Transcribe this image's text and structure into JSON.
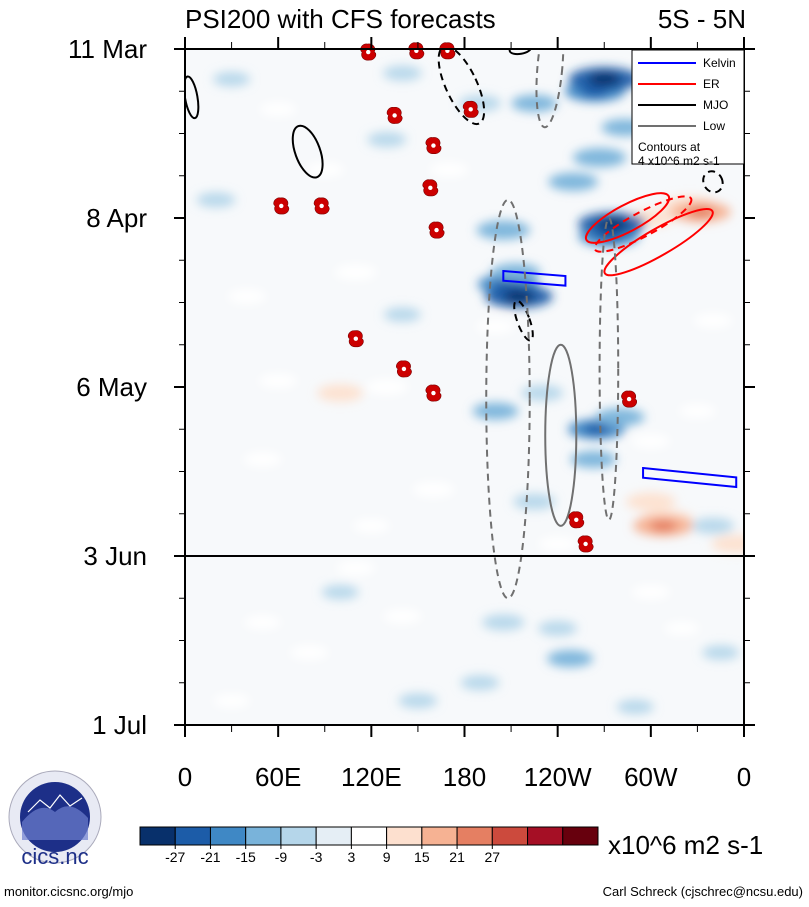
{
  "chart_data": {
    "type": "heatmap",
    "title": "PSI200 with CFS forecasts",
    "region": "5S - 5N",
    "x_ticks": [
      "0",
      "60E",
      "120E",
      "180",
      "120W",
      "60W",
      "0"
    ],
    "x_values": [
      0,
      60,
      120,
      180,
      240,
      300,
      360
    ],
    "xlim": [
      0,
      360
    ],
    "y_ticks": [
      "11 Mar",
      "8 Apr",
      "6 May",
      "3 Jun",
      "1 Jul"
    ],
    "y_values": [
      0,
      28,
      56,
      84,
      112
    ],
    "ylim": [
      0,
      112
    ],
    "forecast_start_label": "3 Jun",
    "forecast_start_day": 84,
    "colorbar": {
      "levels": [
        "-27",
        "-21",
        "-15",
        "-9",
        "-3",
        "3",
        "9",
        "15",
        "21",
        "27"
      ],
      "colors": [
        "#08306b",
        "#1c5ca8",
        "#3f88c5",
        "#79b3da",
        "#b5d6ea",
        "#e5eef5",
        "#ffffff",
        "#fde0cf",
        "#f6b293",
        "#e57f62",
        "#cc4a3d",
        "#a50f25",
        "#67000d"
      ],
      "units": "x10^6 m2 s-1"
    },
    "legend": {
      "items": [
        {
          "label": "Kelvin",
          "color": "#0000ff"
        },
        {
          "label": "ER",
          "color": "#ff0000"
        },
        {
          "label": "MJO",
          "color": "#000000"
        },
        {
          "label": "Low",
          "color": "#707070"
        }
      ],
      "note_line1": "Contours at",
      "note_line2": "4 x10^6 m2 s-1",
      "placement": "top-right"
    },
    "anomaly_patches": [
      {
        "lon": 264,
        "day": 7,
        "v": -18
      },
      {
        "lon": 270,
        "day": 5,
        "v": -24
      },
      {
        "lon": 225,
        "day": 9,
        "v": -10
      },
      {
        "lon": 190,
        "day": 9,
        "v": -8
      },
      {
        "lon": 140,
        "day": 4,
        "v": -6
      },
      {
        "lon": 30,
        "day": 5,
        "v": -5
      },
      {
        "lon": 60,
        "day": 10,
        "v": 5
      },
      {
        "lon": 250,
        "day": 22,
        "v": -12
      },
      {
        "lon": 267,
        "day": 18,
        "v": -14
      },
      {
        "lon": 283,
        "day": 13,
        "v": -10
      },
      {
        "lon": 325,
        "day": 26,
        "v": 14
      },
      {
        "lon": 332,
        "day": 27,
        "v": 18
      },
      {
        "lon": 300,
        "day": 28,
        "v": 10
      },
      {
        "lon": 273,
        "day": 31,
        "v": -18
      },
      {
        "lon": 275,
        "day": 29,
        "v": -22
      },
      {
        "lon": 205,
        "day": 30,
        "v": -14
      },
      {
        "lon": 208,
        "day": 39,
        "v": -18
      },
      {
        "lon": 215,
        "day": 41,
        "v": -22
      },
      {
        "lon": 213,
        "day": 37,
        "v": -12
      },
      {
        "lon": 110,
        "day": 37,
        "v": 8
      },
      {
        "lon": 40,
        "day": 41,
        "v": 6
      },
      {
        "lon": 140,
        "day": 44,
        "v": -5
      },
      {
        "lon": 100,
        "day": 57,
        "v": 10
      },
      {
        "lon": 130,
        "day": 56,
        "v": 8
      },
      {
        "lon": 60,
        "day": 55,
        "v": 6
      },
      {
        "lon": 200,
        "day": 60,
        "v": -10
      },
      {
        "lon": 230,
        "day": 57,
        "v": -8
      },
      {
        "lon": 265,
        "day": 63,
        "v": -16
      },
      {
        "lon": 280,
        "day": 61,
        "v": -12
      },
      {
        "lon": 263,
        "day": 68,
        "v": -10
      },
      {
        "lon": 300,
        "day": 65,
        "v": 6
      },
      {
        "lon": 330,
        "day": 60,
        "v": 5
      },
      {
        "lon": 300,
        "day": 75,
        "v": 12
      },
      {
        "lon": 310,
        "day": 78,
        "v": 14
      },
      {
        "lon": 308,
        "day": 79,
        "v": 18
      },
      {
        "lon": 355,
        "day": 82,
        "v": 12
      },
      {
        "lon": 340,
        "day": 79,
        "v": -8
      },
      {
        "lon": 160,
        "day": 73,
        "v": 8
      },
      {
        "lon": 50,
        "day": 68,
        "v": 6
      },
      {
        "lon": 225,
        "day": 75,
        "v": -8
      },
      {
        "lon": 120,
        "day": 79,
        "v": 5
      },
      {
        "lon": 240,
        "day": 82,
        "v": 6
      },
      {
        "lon": 200,
        "day": 46,
        "v": 6
      },
      {
        "lon": 20,
        "day": 25,
        "v": -6
      },
      {
        "lon": 90,
        "day": 20,
        "v": 6
      },
      {
        "lon": 130,
        "day": 15,
        "v": -6
      },
      {
        "lon": 170,
        "day": 20,
        "v": 6
      },
      {
        "lon": 340,
        "day": 45,
        "v": 6
      },
      {
        "lon": 100,
        "day": 90,
        "v": -5
      },
      {
        "lon": 140,
        "day": 94,
        "v": 6
      },
      {
        "lon": 205,
        "day": 95,
        "v": -8
      },
      {
        "lon": 240,
        "day": 96,
        "v": -6
      },
      {
        "lon": 248,
        "day": 101,
        "v": -10
      },
      {
        "lon": 300,
        "day": 90,
        "v": 6
      },
      {
        "lon": 50,
        "day": 95,
        "v": 5
      },
      {
        "lon": 345,
        "day": 100,
        "v": -5
      },
      {
        "lon": 190,
        "day": 105,
        "v": -6
      },
      {
        "lon": 30,
        "day": 108,
        "v": 5
      },
      {
        "lon": 150,
        "day": 108,
        "v": -6
      },
      {
        "lon": 290,
        "day": 109,
        "v": -5
      },
      {
        "lon": 80,
        "day": 100,
        "v": 6
      },
      {
        "lon": 110,
        "day": 86,
        "v": 6
      },
      {
        "lon": 320,
        "day": 96,
        "v": 4
      }
    ],
    "forecast_contours": [
      {
        "kind": "Kelvin",
        "dashed": false,
        "lon": 225,
        "day": 38,
        "len_lon": 40,
        "half_width_days": 0.8,
        "slope": 0.08
      },
      {
        "kind": "Kelvin",
        "dashed": false,
        "lon": 325,
        "day": 71,
        "len_lon": 60,
        "half_width_days": 0.8,
        "slope": 0.1
      },
      {
        "kind": "ER",
        "dashed": false,
        "lon": 285,
        "day": 28,
        "rx_lon": 30,
        "ry_day": 2.2,
        "angle": -28
      },
      {
        "kind": "ER",
        "dashed": true,
        "lon": 295,
        "day": 29,
        "rx_lon": 35,
        "ry_day": 2.0,
        "angle": -28
      },
      {
        "kind": "ER",
        "dashed": false,
        "lon": 305,
        "day": 32,
        "rx_lon": 40,
        "ry_day": 2.2,
        "angle": -30
      },
      {
        "kind": "MJO",
        "dashed": false,
        "lon": 4,
        "day": 8,
        "rx_lon": 4,
        "ry_day": 3.5,
        "angle": -10
      },
      {
        "kind": "MJO",
        "dashed": false,
        "lon": 79,
        "day": 17,
        "rx_lon": 8,
        "ry_day": 4.5,
        "angle": -20
      },
      {
        "kind": "MJO",
        "dashed": true,
        "lon": 178,
        "day": 6,
        "rx_lon": 10,
        "ry_day": 7,
        "angle": -25
      },
      {
        "kind": "MJO",
        "dashed": true,
        "lon": 218,
        "day": 45,
        "rx_lon": 4,
        "ry_day": 3.5,
        "angle": -20
      },
      {
        "kind": "MJO",
        "dashed": true,
        "lon": 340,
        "day": 22,
        "rx_lon": 6,
        "ry_day": 1.8,
        "angle": -30
      },
      {
        "kind": "MJO",
        "dashed": false,
        "lon": 216,
        "day": 0,
        "rx_lon": 7,
        "ry_day": 0.8,
        "angle": -10
      },
      {
        "kind": "Low",
        "dashed": true,
        "lon": 208,
        "day": 58,
        "rx_lon": 14,
        "ry_day": 33,
        "angle": 0
      },
      {
        "kind": "Low",
        "dashed": false,
        "lon": 242,
        "day": 64,
        "rx_lon": 10,
        "ry_day": 15,
        "angle": 0
      },
      {
        "kind": "Low",
        "dashed": true,
        "lon": 273,
        "day": 53,
        "rx_lon": 6,
        "ry_day": 25,
        "angle": 0
      },
      {
        "kind": "Low",
        "dashed": true,
        "lon": 235,
        "day": 3,
        "rx_lon": 8,
        "ry_day": 10,
        "angle": 5
      }
    ],
    "tropical_cyclones": [
      {
        "lon": 118,
        "day": 0.5
      },
      {
        "lon": 149,
        "day": 0.3
      },
      {
        "lon": 169,
        "day": 0.3
      },
      {
        "lon": 135,
        "day": 11
      },
      {
        "lon": 184,
        "day": 10
      },
      {
        "lon": 160,
        "day": 16
      },
      {
        "lon": 158,
        "day": 23
      },
      {
        "lon": 62,
        "day": 26
      },
      {
        "lon": 88,
        "day": 26
      },
      {
        "lon": 162,
        "day": 30
      },
      {
        "lon": 110,
        "day": 48
      },
      {
        "lon": 141,
        "day": 53
      },
      {
        "lon": 160,
        "day": 57
      },
      {
        "lon": 286,
        "day": 58
      },
      {
        "lon": 252,
        "day": 78
      },
      {
        "lon": 258,
        "day": 82
      }
    ]
  },
  "footer": {
    "logo_text": "cics.nc",
    "logo_ring_text": "Cooperative Institute for Climate and Satellites",
    "website": "monitor.cicsnc.org/mjo",
    "author": "Carl Schreck (cjschrec@ncsu.edu)"
  },
  "style": {
    "kelvin_color": "#0000ff",
    "er_color": "#ff0000",
    "mjo_color": "#000000",
    "low_color": "#707070",
    "tc_color": "#cc0000"
  }
}
